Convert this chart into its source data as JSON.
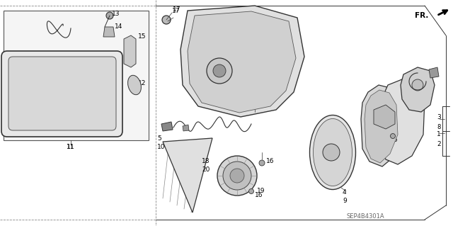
{
  "bg_color": "#ffffff",
  "line_color": "#333333",
  "fig_w": 6.4,
  "fig_h": 3.19,
  "dpi": 100,
  "diagram_id": "SEP4B4301A"
}
